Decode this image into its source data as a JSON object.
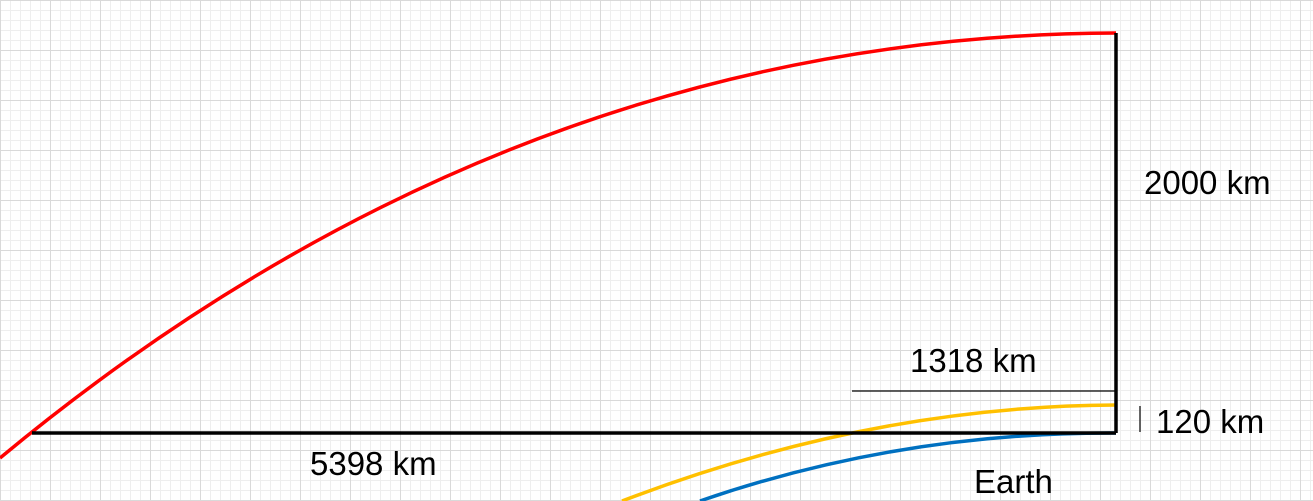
{
  "labels": {
    "altitude_high": "2000 km",
    "horizon_distance_low": "1318 km",
    "altitude_low": "120 km",
    "horizon_distance_high": "5398 km",
    "earth": "Earth"
  },
  "colors": {
    "high_orbit": "#ff0000",
    "low_orbit": "#ffc000",
    "earth_surface": "#0070c0",
    "lines": "#000000"
  }
}
